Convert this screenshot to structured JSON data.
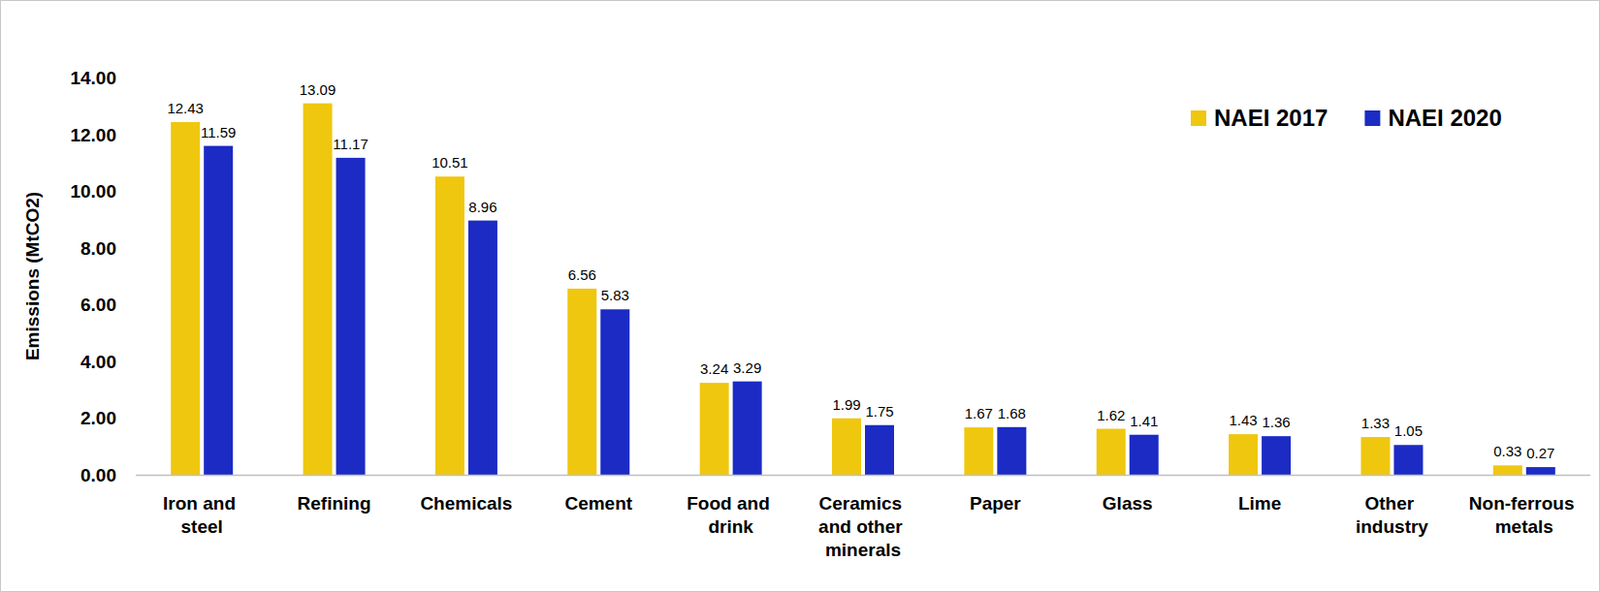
{
  "chart_data": {
    "type": "bar",
    "y_label": "Emissions (MtCO2)",
    "categories": [
      "Iron and steel",
      "Refining",
      "Chemicals",
      "Cement",
      "Food and drink",
      "Ceramics and other minerals",
      "Paper",
      "Glass",
      "Lime",
      "Other industry",
      "Non-ferrous metals"
    ],
    "series": [
      {
        "name": "NAEI 2017",
        "color": "#f0c70f",
        "values": [
          12.43,
          13.09,
          10.51,
          6.56,
          3.24,
          1.99,
          1.67,
          1.62,
          1.43,
          1.33,
          0.33
        ]
      },
      {
        "name": "NAEI 2020",
        "color": "#1b2bc4",
        "values": [
          11.59,
          11.17,
          8.96,
          5.83,
          3.29,
          1.75,
          1.68,
          1.41,
          1.36,
          1.05,
          0.27
        ]
      }
    ],
    "ylim": [
      0,
      14
    ],
    "yticks": [
      {
        "value": 0,
        "label": "0.00"
      },
      {
        "value": 2,
        "label": "2.00"
      },
      {
        "value": 4,
        "label": "4.00"
      },
      {
        "value": 6,
        "label": "6.00"
      },
      {
        "value": 8,
        "label": "8.00"
      },
      {
        "value": 10,
        "label": "10.00"
      },
      {
        "value": 12,
        "label": "12.00"
      },
      {
        "value": 14,
        "label": "14.00"
      }
    ],
    "grid": false,
    "legend": "top-right",
    "data_labels": true
  }
}
